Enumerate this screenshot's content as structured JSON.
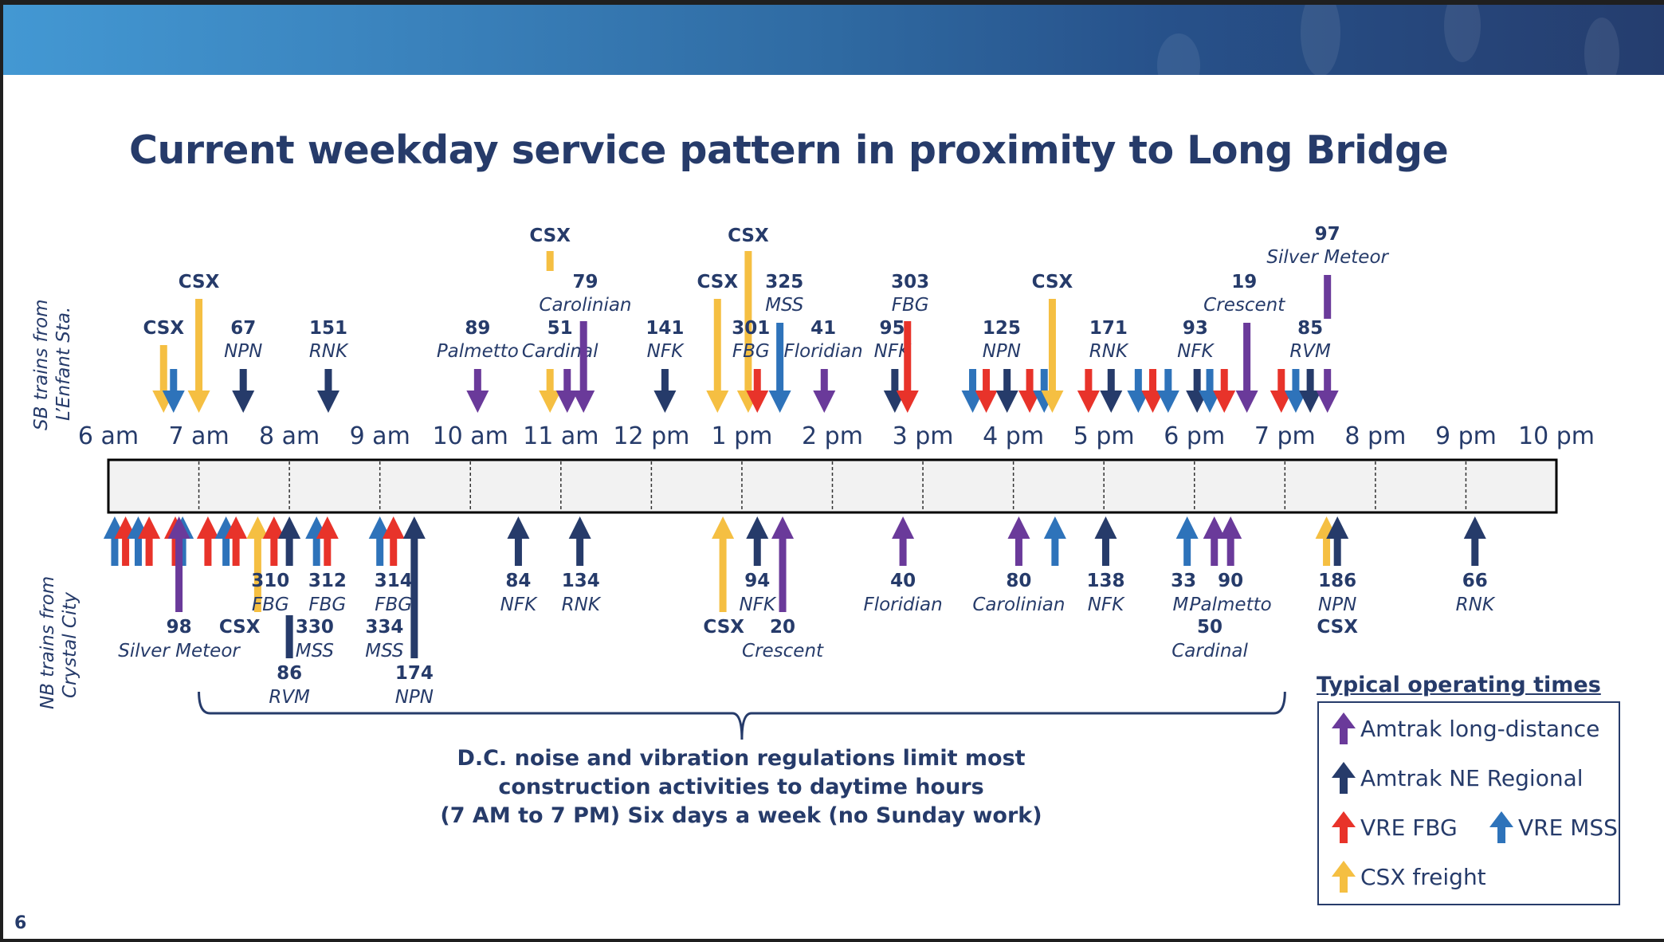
{
  "page": {
    "title": "Current weekday service pattern in proximity to Long Bridge",
    "page_number": "6",
    "side_labels": {
      "sb_line1": "SB  trains from",
      "sb_line2": "L’Enfant Sta.",
      "nb_line1": "NB trains from",
      "nb_line2": "Crystal City"
    },
    "note_lines": [
      "D.C. noise and vibration regulations limit most",
      "construction activities to daytime hours",
      "(7 AM to 7 PM) Six days a week (no Sunday work)"
    ],
    "legend": {
      "title": "Typical operating times",
      "items": [
        {
          "label": "Amtrak long-distance",
          "category": "amtrak_ld"
        },
        {
          "label": "Amtrak NE Regional",
          "category": "amtrak_ner"
        },
        {
          "label": "VRE FBG",
          "category": "vre_fbg"
        },
        {
          "label": "VRE MSS",
          "category": "vre_mss"
        },
        {
          "label": "CSX freight",
          "category": "csx"
        }
      ]
    }
  },
  "chart_data": {
    "type": "timeline",
    "title": "Current weekday service pattern in proximity to Long Bridge",
    "x_unit": "hour of day (decimal, 24h)",
    "xlim": [
      6,
      22
    ],
    "tick_hours": [
      6,
      7,
      8,
      9,
      10,
      11,
      12,
      13,
      14,
      15,
      16,
      17,
      18,
      19,
      20,
      21,
      22
    ],
    "tick_labels": [
      "6 am",
      "7 am",
      "8 am",
      "9 am",
      "10 am",
      "11 am",
      "12 pm",
      "1 pm",
      "2 pm",
      "3 pm",
      "4 pm",
      "5 pm",
      "6 pm",
      "7 pm",
      "8 pm",
      "9 pm",
      "10 pm"
    ],
    "colors": {
      "amtrak_ld": "#6a3a9a",
      "amtrak_ner": "#263b6a",
      "vre_fbg": "#e8332a",
      "vre_mss": "#2e73ba",
      "csx": "#f5bf42"
    },
    "bracket": {
      "from_hour": 7,
      "to_hour": 19
    },
    "southbound": [
      {
        "time": 6.61,
        "category": "csx",
        "num": "CSX",
        "name": "",
        "tier": 1
      },
      {
        "time": 6.72,
        "category": "vre_mss",
        "num": "",
        "name": "",
        "tier": 0
      },
      {
        "time": 7.0,
        "category": "csx",
        "num": "CSX",
        "name": "",
        "tier": 2
      },
      {
        "time": 7.49,
        "category": "amtrak_ner",
        "num": "67",
        "name": "NPN",
        "tier": 0
      },
      {
        "time": 8.43,
        "category": "amtrak_ner",
        "num": "151",
        "name": "RNK",
        "tier": 0
      },
      {
        "time": 10.08,
        "category": "amtrak_ld",
        "num": "89",
        "name": "Palmetto",
        "tier": 0
      },
      {
        "time": 10.88,
        "category": "csx",
        "num": "CSX",
        "name": "",
        "tier": 3,
        "broken": true
      },
      {
        "time": 11.07,
        "category": "amtrak_ld",
        "num": "51",
        "name": "Cardinal",
        "tier": 0
      },
      {
        "time": 11.25,
        "category": "amtrak_ld",
        "num": "79",
        "name": "Carolinian",
        "tier": 1,
        "label_only_offset": true
      },
      {
        "time": 12.15,
        "category": "amtrak_ner",
        "num": "141",
        "name": "NFK",
        "tier": 0
      },
      {
        "time": 12.73,
        "category": "csx",
        "num": "CSX",
        "name": "",
        "tier": 2
      },
      {
        "time": 13.07,
        "category": "csx",
        "num": "CSX",
        "name": "",
        "tier": 3,
        "broken": true
      },
      {
        "time": 13.17,
        "category": "vre_fbg",
        "num": "301",
        "name": "FBG",
        "tier": 0
      },
      {
        "time": 13.42,
        "category": "vre_mss",
        "num": "325",
        "name": "MSS",
        "tier": 1
      },
      {
        "time": 13.91,
        "category": "amtrak_ld",
        "num": "41",
        "name": "Floridian",
        "tier": 0
      },
      {
        "time": 14.69,
        "category": "amtrak_ner",
        "num": "95",
        "name": "NFK",
        "tier": 0
      },
      {
        "time": 14.83,
        "category": "vre_fbg",
        "num": "303",
        "name": "FBG",
        "tier": 1,
        "label_only_offset": true
      },
      {
        "time": 15.55,
        "category": "vre_mss",
        "num": "",
        "name": "",
        "tier": 0
      },
      {
        "time": 15.7,
        "category": "vre_fbg",
        "num": "",
        "name": "",
        "tier": 0
      },
      {
        "time": 15.93,
        "category": "amtrak_ner",
        "num": "125",
        "name": "NPN",
        "tier": 0
      },
      {
        "time": 16.18,
        "category": "vre_fbg",
        "num": "",
        "name": "",
        "tier": 0
      },
      {
        "time": 16.34,
        "category": "vre_mss",
        "num": "",
        "name": "",
        "tier": 0
      },
      {
        "time": 16.43,
        "category": "csx",
        "num": "CSX",
        "name": "",
        "tier": 2
      },
      {
        "time": 16.83,
        "category": "vre_fbg",
        "num": "",
        "name": "",
        "tier": 0
      },
      {
        "time": 17.08,
        "category": "amtrak_ner",
        "num": "171",
        "name": "RNK",
        "tier": 0
      },
      {
        "time": 17.38,
        "category": "vre_mss",
        "num": "",
        "name": "",
        "tier": 0
      },
      {
        "time": 17.54,
        "category": "vre_fbg",
        "num": "",
        "name": "",
        "tier": 0
      },
      {
        "time": 17.71,
        "category": "vre_mss",
        "num": "",
        "name": "",
        "tier": 0
      },
      {
        "time": 18.03,
        "category": "amtrak_ner",
        "num": "93",
        "name": "NFK",
        "tier": 0
      },
      {
        "time": 18.17,
        "category": "vre_mss",
        "num": "",
        "name": "",
        "tier": 0
      },
      {
        "time": 18.33,
        "category": "vre_fbg",
        "num": "",
        "name": "",
        "tier": 0
      },
      {
        "time": 18.58,
        "category": "amtrak_ld",
        "num": "19",
        "name": "Crescent",
        "tier": 1
      },
      {
        "time": 18.96,
        "category": "vre_fbg",
        "num": "",
        "name": "",
        "tier": 0
      },
      {
        "time": 19.12,
        "category": "vre_mss",
        "num": "",
        "name": "",
        "tier": 0
      },
      {
        "time": 19.28,
        "category": "amtrak_ner",
        "num": "85",
        "name": "RVM",
        "tier": 0
      },
      {
        "time": 19.47,
        "category": "amtrak_ld",
        "num": "97",
        "name": "Silver Meteor",
        "tier": 2,
        "broken": true
      }
    ],
    "northbound": [
      {
        "time": 6.07,
        "category": "vre_mss",
        "num": "",
        "name": "",
        "tier": 0
      },
      {
        "time": 6.19,
        "category": "vre_fbg",
        "num": "",
        "name": "",
        "tier": 0
      },
      {
        "time": 6.33,
        "category": "vre_mss",
        "num": "",
        "name": "",
        "tier": 0
      },
      {
        "time": 6.45,
        "category": "vre_fbg",
        "num": "",
        "name": "",
        "tier": 0
      },
      {
        "time": 6.74,
        "category": "vre_fbg",
        "num": "",
        "name": "",
        "tier": 0
      },
      {
        "time": 6.82,
        "category": "vre_mss",
        "num": "",
        "name": "",
        "tier": 0
      },
      {
        "time": 6.78,
        "category": "amtrak_ld",
        "num": "98",
        "name": "Silver Meteor",
        "tier": 1
      },
      {
        "time": 7.1,
        "category": "vre_fbg",
        "num": "",
        "name": "",
        "tier": 0
      },
      {
        "time": 7.3,
        "category": "vre_mss",
        "num": "",
        "name": "",
        "tier": 0
      },
      {
        "time": 7.41,
        "category": "vre_fbg",
        "num": "",
        "name": "",
        "tier": 0
      },
      {
        "time": 7.65,
        "category": "csx",
        "num": "CSX",
        "name": "",
        "tier": 1,
        "thin_tail": true
      },
      {
        "time": 7.83,
        "category": "vre_fbg",
        "num": "310",
        "name": "FBG",
        "tier": 0
      },
      {
        "time": 8.0,
        "category": "amtrak_ner",
        "num": "86",
        "name": "RVM",
        "tier": 2,
        "broken": true
      },
      {
        "time": 8.3,
        "category": "vre_mss",
        "num": "330",
        "name": "MSS",
        "tier": 1,
        "label_only_offset": true
      },
      {
        "time": 8.42,
        "category": "vre_fbg",
        "num": "312",
        "name": "FBG",
        "tier": 0
      },
      {
        "time": 9.0,
        "category": "vre_mss",
        "num": "334",
        "name": "MSS",
        "tier": 1,
        "label_only_offset": true
      },
      {
        "time": 9.15,
        "category": "vre_fbg",
        "num": "314",
        "name": "FBG",
        "tier": 0
      },
      {
        "time": 9.38,
        "category": "amtrak_ner",
        "num": "174",
        "name": "NPN",
        "tier": 2
      },
      {
        "time": 10.53,
        "category": "amtrak_ner",
        "num": "84",
        "name": "NFK",
        "tier": 0
      },
      {
        "time": 11.21,
        "category": "amtrak_ner",
        "num": "134",
        "name": "RNK",
        "tier": 0
      },
      {
        "time": 12.79,
        "category": "csx",
        "num": "CSX",
        "name": "",
        "tier": 1
      },
      {
        "time": 13.17,
        "category": "amtrak_ner",
        "num": "94",
        "name": "NFK",
        "tier": 0
      },
      {
        "time": 13.45,
        "category": "amtrak_ld",
        "num": "20",
        "name": "Crescent",
        "tier": 1
      },
      {
        "time": 14.78,
        "category": "amtrak_ld",
        "num": "40",
        "name": "Floridian",
        "tier": 0
      },
      {
        "time": 16.06,
        "category": "amtrak_ld",
        "num": "80",
        "name": "Carolinian",
        "tier": 0
      },
      {
        "time": 16.46,
        "category": "vre_mss",
        "num": "",
        "name": "",
        "tier": 0
      },
      {
        "time": 17.02,
        "category": "amtrak_ner",
        "num": "138",
        "name": "NFK",
        "tier": 0
      },
      {
        "time": 17.92,
        "category": "vre_mss",
        "num": "33?",
        "name": "M.",
        "tier": 0
      },
      {
        "time": 18.22,
        "category": "amtrak_ld",
        "num": "50",
        "name": "Cardinal",
        "tier": 1,
        "label_only_offset": true
      },
      {
        "time": 18.4,
        "category": "amtrak_ld",
        "num": "90",
        "name": "Palmetto",
        "tier": 0
      },
      {
        "time": 19.46,
        "category": "csx",
        "num": "CSX",
        "name": "",
        "tier": 1,
        "label_only_offset": true
      },
      {
        "time": 19.58,
        "category": "amtrak_ner",
        "num": "186",
        "name": "NPN",
        "tier": 0
      },
      {
        "time": 21.1,
        "category": "amtrak_ner",
        "num": "66",
        "name": "RNK",
        "tier": 0
      }
    ]
  }
}
